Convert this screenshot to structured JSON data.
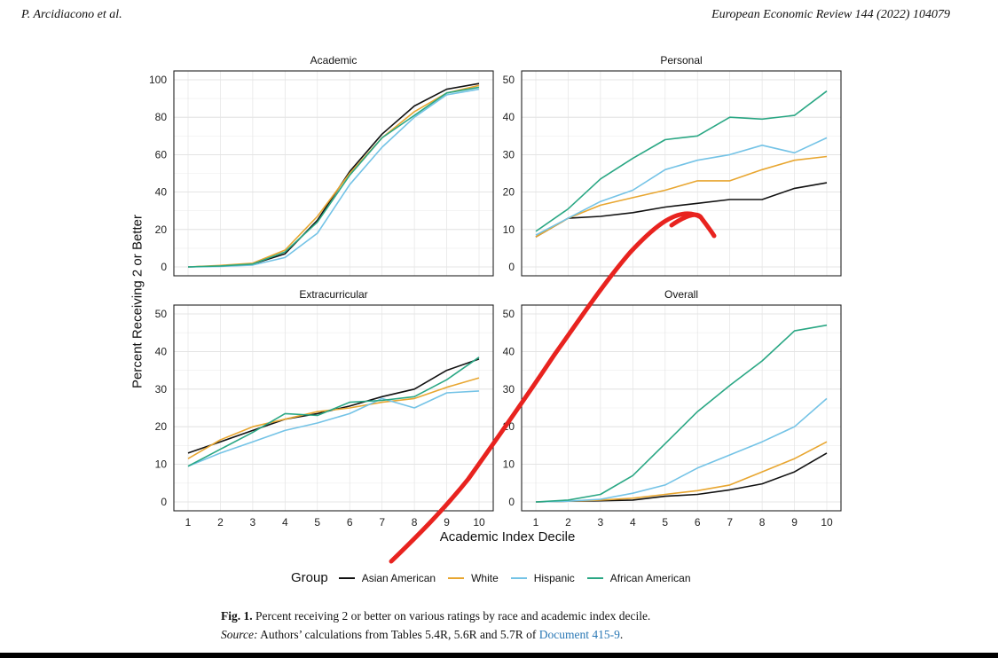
{
  "header": {
    "left": "P. Arcidiacono et al.",
    "right": "European Economic Review 144 (2022) 104079"
  },
  "chart_data": {
    "type": "line",
    "ylabel": "Percent Receiving 2 or Better",
    "xlabel": "Academic Index Decile",
    "x": [
      1,
      2,
      3,
      4,
      5,
      6,
      7,
      8,
      9,
      10
    ],
    "xticks": [
      "1",
      "2",
      "3",
      "4",
      "5",
      "6",
      "7",
      "8",
      "9",
      "10"
    ],
    "grid": true,
    "legend_placement": "bottom",
    "legend_title": "Group",
    "series_colors": {
      "Asian American": "#111111",
      "White": "#e8a630",
      "Hispanic": "#74c3e6",
      "African American": "#2aa784"
    },
    "annotation_color": "#e8231f",
    "panels": [
      {
        "title": "Academic",
        "ylim": [
          0,
          100
        ],
        "yticks": [
          "0",
          "20",
          "40",
          "60",
          "80",
          "100"
        ],
        "series": [
          {
            "name": "Asian American",
            "values": [
              0,
              0.5,
              1.5,
              7,
              25,
              51,
              71,
              86,
              95,
              98
            ]
          },
          {
            "name": "White",
            "values": [
              0,
              0.8,
              2,
              9,
              27,
              50,
              69,
              83,
              93,
              97
            ]
          },
          {
            "name": "Hispanic",
            "values": [
              0,
              0.3,
              1,
              5,
              18,
              44,
              64,
              80,
              92,
              95
            ]
          },
          {
            "name": "African American",
            "values": [
              0,
              0.5,
              1.5,
              8,
              24,
              49,
              69,
              81,
              93,
              96
            ]
          }
        ]
      },
      {
        "title": "Personal",
        "ylim": [
          0,
          50
        ],
        "yticks": [
          "0",
          "10",
          "20",
          "30",
          "40",
          "50"
        ],
        "series": [
          {
            "name": "Asian American",
            "values": [
              8,
              13,
              13.5,
              14.5,
              16,
              17,
              18,
              18,
              21,
              22.5
            ]
          },
          {
            "name": "White",
            "values": [
              8,
              13,
              16.5,
              18.5,
              20.5,
              23,
              23,
              26,
              28.5,
              29.5
            ]
          },
          {
            "name": "Hispanic",
            "values": [
              8.5,
              13,
              17.5,
              20.5,
              26,
              28.5,
              30,
              32.5,
              30.5,
              34.5
            ]
          },
          {
            "name": "African American",
            "values": [
              9.5,
              15.5,
              23.5,
              29,
              34,
              35,
              40,
              39.5,
              40.5,
              47
            ]
          }
        ]
      },
      {
        "title": "Extracurricular",
        "ylim": [
          0,
          50
        ],
        "yticks": [
          "0",
          "10",
          "20",
          "30",
          "40",
          "50"
        ],
        "series": [
          {
            "name": "Asian American",
            "values": [
              13,
              16,
              19,
              22,
              23.5,
              25.5,
              28,
              30,
              35,
              38
            ]
          },
          {
            "name": "White",
            "values": [
              11.5,
              16.5,
              20,
              22,
              24,
              25,
              26.5,
              27.5,
              30.5,
              33
            ]
          },
          {
            "name": "Hispanic",
            "values": [
              9.5,
              13,
              16,
              19,
              21,
              23.5,
              27.5,
              25,
              29,
              29.5
            ]
          },
          {
            "name": "African American",
            "values": [
              9.5,
              14,
              18.5,
              23.5,
              23,
              26.5,
              27,
              28,
              32.5,
              38.5
            ]
          }
        ]
      },
      {
        "title": "Overall",
        "ylim": [
          0,
          50
        ],
        "yticks": [
          "0",
          "10",
          "20",
          "30",
          "40",
          "50"
        ],
        "series": [
          {
            "name": "Asian American",
            "values": [
              0,
              0.2,
              0.3,
              0.5,
              1.5,
              2,
              3.2,
              4.8,
              8,
              13
            ]
          },
          {
            "name": "White",
            "values": [
              0,
              0.2,
              0.5,
              1,
              2,
              3,
              4.5,
              8,
              11.5,
              16
            ]
          },
          {
            "name": "Hispanic",
            "values": [
              0,
              0.2,
              0.7,
              2.3,
              4.5,
              9,
              12.5,
              16,
              20,
              27.5
            ]
          },
          {
            "name": "African American",
            "values": [
              0,
              0.5,
              2,
              7,
              15.5,
              24,
              31,
              37.5,
              45.5,
              47
            ]
          }
        ]
      }
    ]
  },
  "caption": {
    "fig_label": "Fig. 1.",
    "fig_text": " Percent receiving 2 or better on various ratings by race and academic index decile.",
    "source_label": "Source:",
    "source_text": " Authors’ calculations from Tables 5.4R, 5.6R and 5.7R of ",
    "link_text": "Document 415-9",
    "end": "."
  }
}
